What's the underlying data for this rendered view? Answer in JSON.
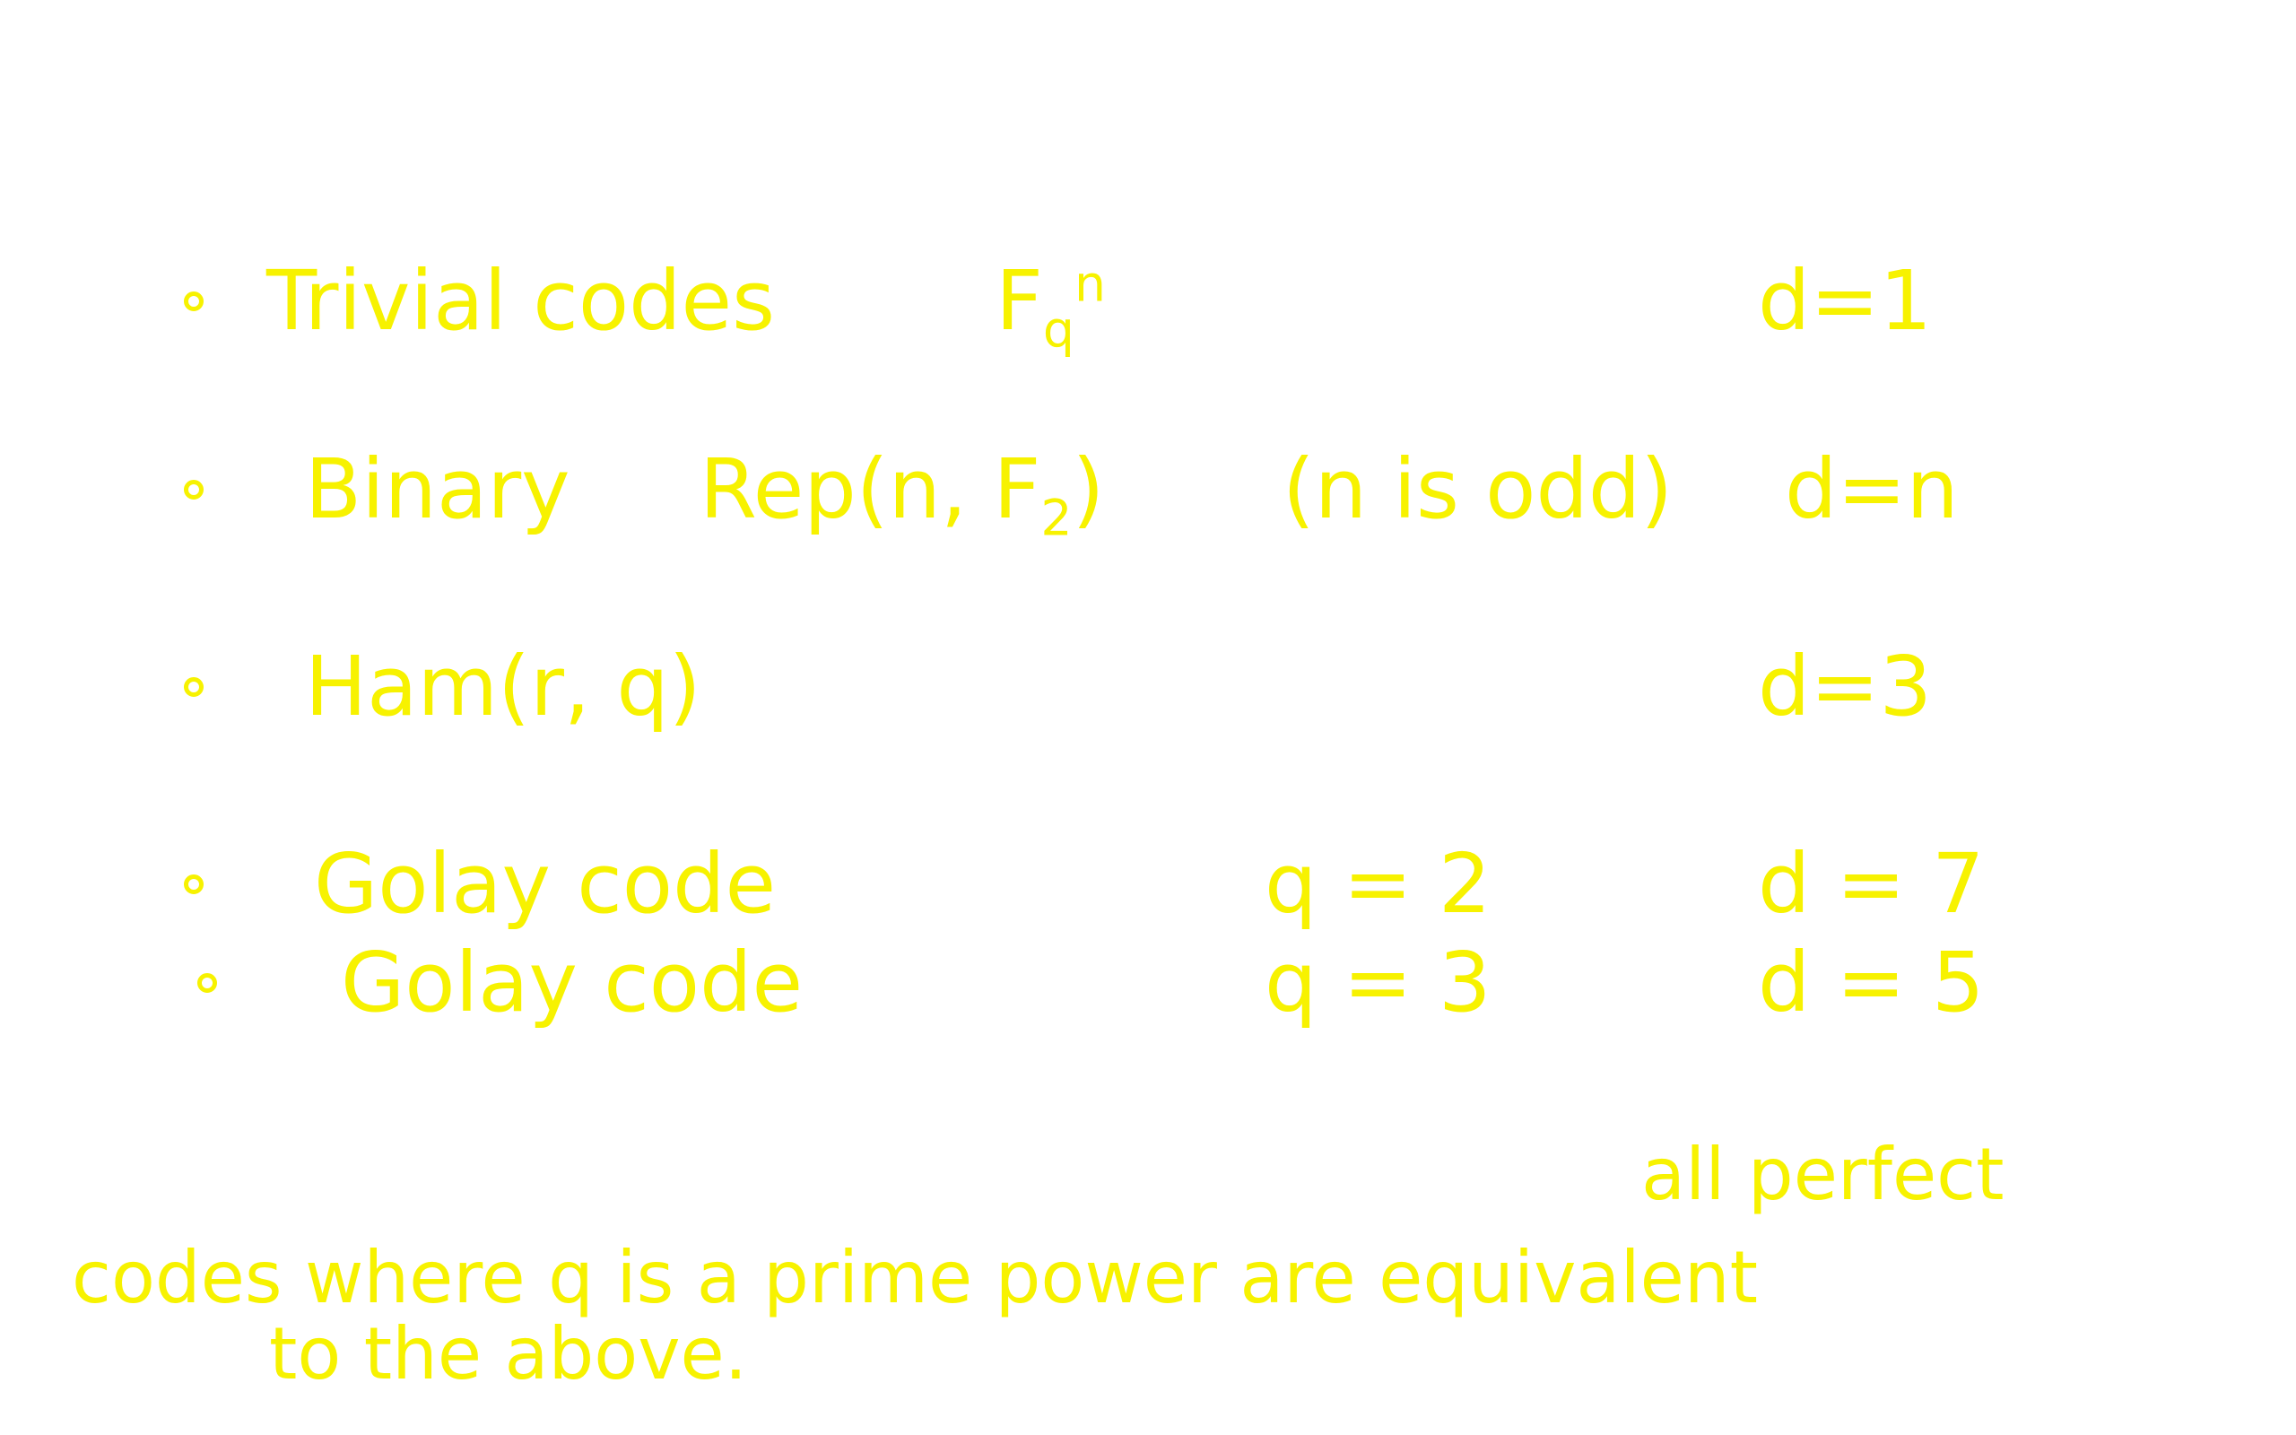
{
  "items": [
    {
      "name": "Trivial codes",
      "code": {
        "base": "F",
        "sub": "q",
        "sup": "n"
      },
      "distance": "d=1"
    },
    {
      "name": "Binary",
      "code": {
        "base": "Rep(n, F",
        "sub": "2",
        "tail": ")"
      },
      "condition": "(n is odd)",
      "distance": "d=n"
    },
    {
      "name": "Ham(r, q)",
      "distance": "d=3"
    },
    {
      "name": "Golay code",
      "condition": "q = 2",
      "distance": "d = 7"
    },
    {
      "name": "Golay code",
      "condition": "q = 3",
      "distance": "d = 5"
    }
  ],
  "note": {
    "lines": [
      "all perfect",
      "codes where q is a prime power are equivalent",
      "to the above."
    ]
  }
}
